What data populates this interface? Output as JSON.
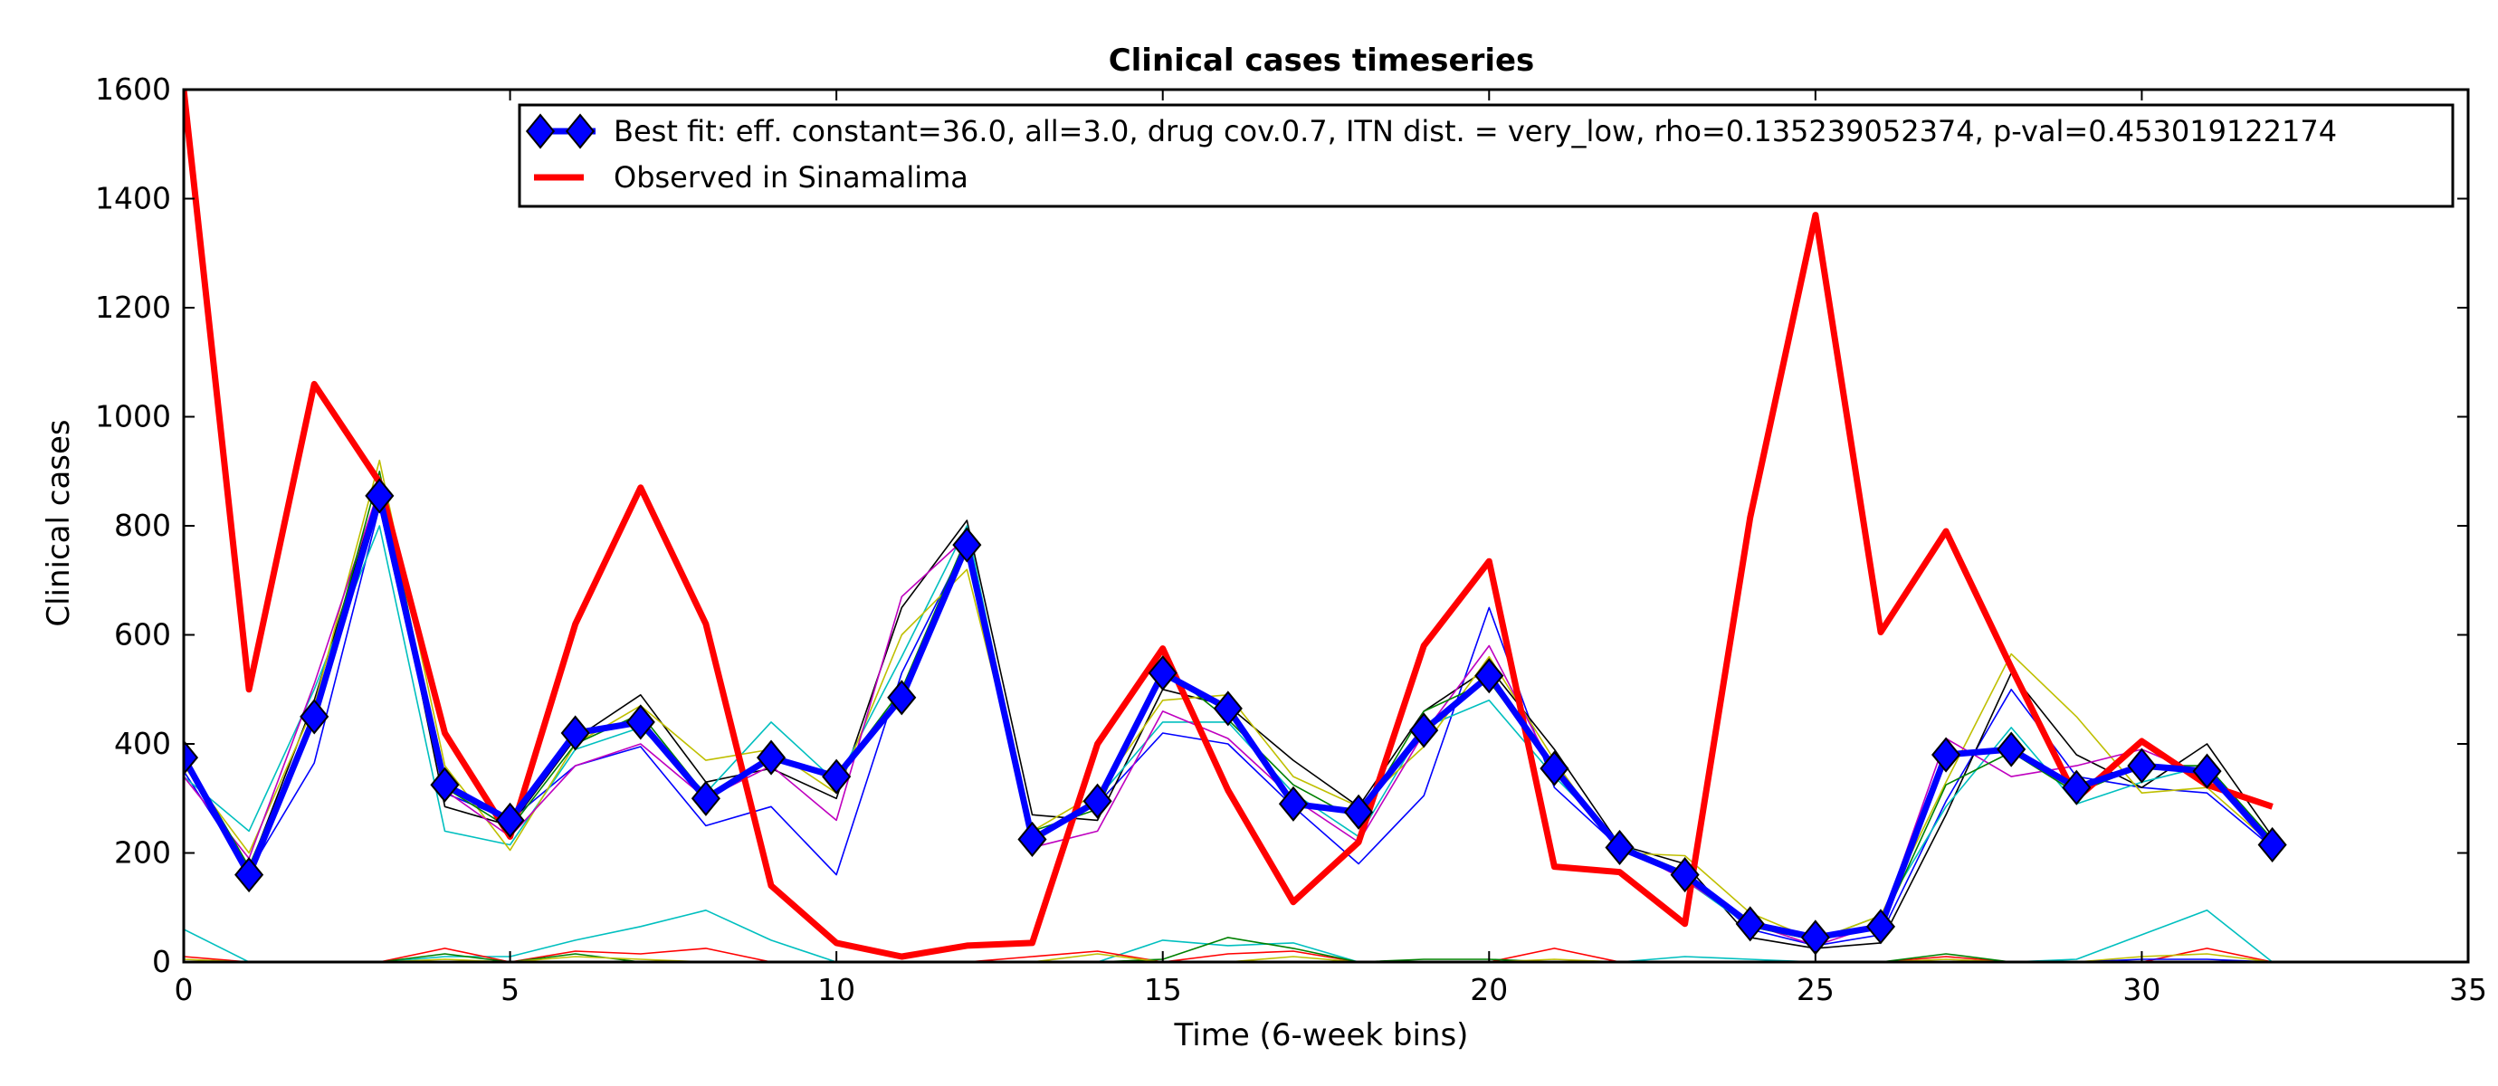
{
  "chart_data": {
    "type": "line",
    "title": "Clinical cases timeseries",
    "xlabel": "Time (6-week bins)",
    "ylabel": "Clinical cases",
    "xlim": [
      0,
      35
    ],
    "ylim": [
      0,
      1600
    ],
    "xticks": [
      0,
      5,
      10,
      15,
      20,
      25,
      30,
      35
    ],
    "yticks": [
      0,
      200,
      400,
      600,
      800,
      1000,
      1200,
      1400,
      1600
    ],
    "grid": false,
    "legend_position": "top-right",
    "x": [
      0,
      1,
      2,
      3,
      4,
      5,
      6,
      7,
      8,
      9,
      10,
      11,
      12,
      13,
      14,
      15,
      16,
      17,
      18,
      19,
      20,
      21,
      22,
      23,
      24,
      25,
      26,
      27,
      28,
      29,
      30,
      31,
      32
    ],
    "series": [
      {
        "name": "Best fit: eff. constant=36.0, all=3.0, drug cov.0.7, ITN dist. = very_low, rho=0.135239052374, p-val=0.453019122174",
        "color": "#0000ff",
        "marker": "diamond",
        "values": [
          375,
          160,
          450,
          855,
          325,
          260,
          420,
          440,
          300,
          375,
          340,
          485,
          765,
          225,
          295,
          530,
          465,
          290,
          275,
          425,
          525,
          355,
          210,
          160,
          70,
          45,
          65,
          380,
          390,
          320,
          360,
          350,
          215
        ]
      },
      {
        "name": "Observed in Sinamalima",
        "color": "#ff0000",
        "values": [
          1600,
          500,
          1060,
          880,
          420,
          230,
          620,
          870,
          620,
          140,
          35,
          10,
          30,
          35,
          400,
          575,
          315,
          110,
          220,
          580,
          735,
          175,
          165,
          70,
          815,
          1370,
          605,
          790,
          540,
          300,
          405,
          325,
          285
        ]
      }
    ],
    "background_series": [
      {
        "color": "#0000ff",
        "values": [
          350,
          165,
          365,
          835,
          310,
          260,
          360,
          395,
          250,
          285,
          160,
          530,
          770,
          230,
          290,
          420,
          400,
          285,
          180,
          305,
          650,
          320,
          210,
          165,
          60,
          30,
          50,
          295,
          500,
          340,
          320,
          310,
          210
        ]
      },
      {
        "color": "#000000",
        "values": [
          380,
          170,
          480,
          870,
          285,
          250,
          410,
          490,
          330,
          355,
          300,
          650,
          810,
          270,
          260,
          500,
          470,
          370,
          285,
          460,
          540,
          390,
          215,
          180,
          45,
          25,
          35,
          270,
          530,
          380,
          320,
          400,
          230
        ]
      },
      {
        "color": "#00bfbf",
        "values": [
          340,
          240,
          500,
          800,
          240,
          215,
          390,
          430,
          310,
          440,
          330,
          560,
          800,
          225,
          300,
          440,
          440,
          310,
          230,
          430,
          480,
          340,
          220,
          150,
          65,
          40,
          85,
          285,
          430,
          290,
          330,
          360,
          220
        ]
      },
      {
        "color": "#bfbf00",
        "values": [
          360,
          200,
          470,
          920,
          360,
          205,
          400,
          470,
          370,
          390,
          310,
          600,
          720,
          240,
          310,
          480,
          490,
          340,
          285,
          395,
          560,
          370,
          200,
          195,
          90,
          40,
          85,
          330,
          565,
          450,
          310,
          320,
          215
        ]
      },
      {
        "color": "#bf00bf",
        "values": [
          340,
          190,
          510,
          870,
          315,
          230,
          360,
          400,
          300,
          360,
          260,
          670,
          780,
          210,
          240,
          460,
          410,
          300,
          220,
          420,
          580,
          350,
          215,
          150,
          70,
          30,
          70,
          410,
          340,
          360,
          390,
          340,
          220
        ]
      },
      {
        "color": "#008000",
        "values": [
          380,
          175,
          455,
          900,
          320,
          245,
          400,
          455,
          305,
          370,
          340,
          500,
          780,
          240,
          280,
          540,
          445,
          325,
          260,
          460,
          515,
          355,
          215,
          165,
          65,
          40,
          65,
          325,
          385,
          310,
          360,
          360,
          225
        ]
      },
      {
        "color": "#00bfbf",
        "values": [
          60,
          0,
          0,
          0,
          10,
          10,
          40,
          65,
          95,
          40,
          0,
          0,
          0,
          0,
          0,
          40,
          30,
          35,
          0,
          0,
          0,
          0,
          0,
          10,
          5,
          0,
          0,
          0,
          0,
          5,
          50,
          95,
          0
        ]
      },
      {
        "color": "#ff0000",
        "values": [
          10,
          0,
          0,
          0,
          25,
          0,
          20,
          15,
          25,
          0,
          0,
          0,
          0,
          10,
          20,
          0,
          15,
          20,
          0,
          0,
          0,
          25,
          0,
          0,
          0,
          0,
          0,
          10,
          0,
          0,
          0,
          25,
          0
        ]
      },
      {
        "color": "#008000",
        "values": [
          0,
          0,
          0,
          0,
          15,
          0,
          15,
          0,
          0,
          0,
          0,
          0,
          0,
          0,
          0,
          5,
          45,
          25,
          0,
          5,
          5,
          0,
          0,
          0,
          0,
          0,
          0,
          15,
          0,
          0,
          0,
          0,
          0
        ]
      },
      {
        "color": "#bfbf00",
        "values": [
          5,
          0,
          0,
          0,
          5,
          0,
          10,
          5,
          0,
          0,
          0,
          0,
          0,
          0,
          15,
          0,
          0,
          10,
          0,
          0,
          0,
          5,
          0,
          0,
          0,
          0,
          0,
          5,
          0,
          0,
          10,
          15,
          0
        ]
      },
      {
        "color": "#0000ff",
        "values": [
          0,
          0,
          0,
          0,
          0,
          0,
          0,
          0,
          0,
          0,
          0,
          0,
          0,
          0,
          0,
          0,
          0,
          0,
          0,
          0,
          0,
          0,
          0,
          0,
          0,
          0,
          0,
          0,
          0,
          0,
          5,
          5,
          0
        ]
      }
    ]
  }
}
